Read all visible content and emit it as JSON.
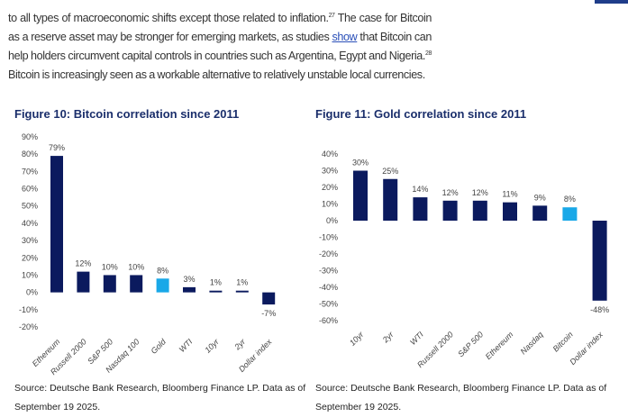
{
  "paragraph": {
    "p1": "to all types of macroeconomic shifts except those related to inflation.",
    "fn1": "27",
    "p2": " The case for Bitcoin as a reserve asset may be stronger for emerging markets, as studies ",
    "link": "show",
    "p3": " that Bitcoin can help holders circumvent capital controls in countries such as Argentina, Egypt and Nigeria.",
    "fn2": "28",
    "p4": " Bitcoin is increasingly seen as a workable alternative to relatively unstable local currencies."
  },
  "source": "Source: Deutsche Bank Research, Bloomberg Finance LP. Data as of September 19 2025.",
  "colors": {
    "navy": "#0b1a5e",
    "highlight": "#19a8e8"
  },
  "chart_data": [
    {
      "type": "bar",
      "title": "Figure 10: Bitcoin correlation since 2011",
      "categories": [
        "Ethereum",
        "Russell 2000",
        "S&P 500",
        "Nasdaq 100",
        "Gold",
        "WTI",
        "10yr",
        "2yr",
        "Dollar index"
      ],
      "values": [
        79,
        12,
        10,
        10,
        8,
        3,
        1,
        1,
        -7
      ],
      "labels": [
        "79%",
        "12%",
        "10%",
        "10%",
        "8%",
        "3%",
        "1%",
        "1%",
        "-7%"
      ],
      "highlight": "Gold",
      "ylim": [
        -20,
        90
      ],
      "yticks": [
        "90%",
        "80%",
        "70%",
        "60%",
        "50%",
        "40%",
        "30%",
        "20%",
        "10%",
        "0%",
        "-10%",
        "-20%"
      ],
      "xlabel": "",
      "ylabel": ""
    },
    {
      "type": "bar",
      "title": "Figure 11: Gold correlation since 2011",
      "categories": [
        "10yr",
        "2yr",
        "WTI",
        "Russell 2000",
        "S&P 500",
        "Ethereum",
        "Nasdaq",
        "Bitcoin",
        "Dollar index"
      ],
      "values": [
        30,
        25,
        14,
        12,
        12,
        11,
        9,
        8,
        -48
      ],
      "labels": [
        "30%",
        "25%",
        "14%",
        "12%",
        "12%",
        "11%",
        "9%",
        "8%",
        "-48%"
      ],
      "highlight": "Bitcoin",
      "ylim": [
        -60,
        40
      ],
      "yticks": [
        "40%",
        "30%",
        "20%",
        "10%",
        "0%",
        "-10%",
        "-20%",
        "-30%",
        "-40%",
        "-50%",
        "-60%"
      ],
      "xlabel": "",
      "ylabel": ""
    }
  ]
}
